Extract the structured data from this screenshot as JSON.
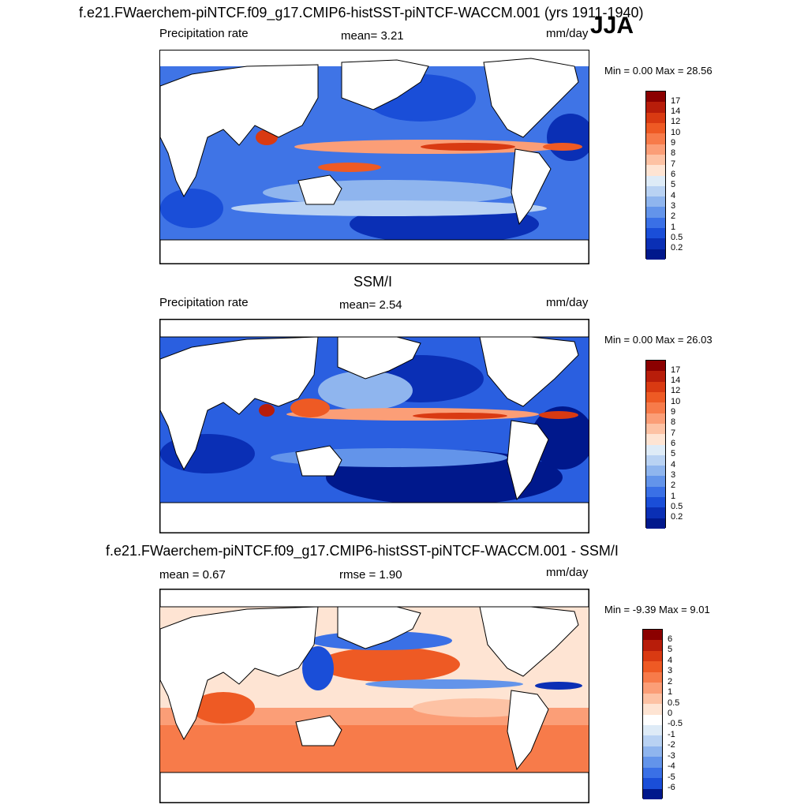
{
  "header": {
    "title": "f.e21.FWaerchem-piNTCF.f09_g17.CMIP6-histSST-piNTCF-WACCM.001 (yrs 1911-1940)",
    "season": "JJA"
  },
  "panel1": {
    "variable": "Precipitation rate",
    "mean_text": "mean=   3.21",
    "units": "mm/day",
    "minmax": "Min =   0.00 Max =  28.56"
  },
  "panel2": {
    "title": "SSM/I",
    "variable": "Precipitation rate",
    "mean_text": "mean=   2.54",
    "units": "mm/day",
    "minmax": "Min =   0.00 Max =  26.03"
  },
  "panel3": {
    "title": "f.e21.FWaerchem-piNTCF.f09_g17.CMIP6-histSST-piNTCF-WACCM.001 - SSM/I",
    "mean_text": "mean =   0.67",
    "rmse_text": "rmse =   1.90",
    "units": "mm/day",
    "minmax": "Min =  -9.39 Max =   9.01"
  },
  "precip_colorbar": {
    "labels": [
      "17",
      "14",
      "12",
      "10",
      "9",
      "8",
      "7",
      "6",
      "5",
      "4",
      "3",
      "2",
      "1",
      "0.5",
      "0.2"
    ],
    "colors": [
      "#8b0000",
      "#b81d0a",
      "#d93a12",
      "#ee5a24",
      "#f77b4a",
      "#fb9e77",
      "#fdc2a4",
      "#fee4d3",
      "#deebf7",
      "#b9d2f3",
      "#8fb5ee",
      "#6394ea",
      "#3a70e6",
      "#1a4ed8",
      "#0a2fb5",
      "#00188c"
    ]
  },
  "diff_colorbar": {
    "labels": [
      "6",
      "5",
      "4",
      "3",
      "2",
      "1",
      "0.5",
      "0",
      "-0.5",
      "-1",
      "-2",
      "-3",
      "-4",
      "-5",
      "-6"
    ],
    "colors": [
      "#8b0000",
      "#b81d0a",
      "#d93a12",
      "#ee5a24",
      "#f77b4a",
      "#fb9e77",
      "#fdc2a4",
      "#fee4d3",
      "#ffffff",
      "#deebf7",
      "#b9d2f3",
      "#8fb5ee",
      "#6394ea",
      "#3a70e6",
      "#1a4ed8",
      "#00188c"
    ]
  }
}
